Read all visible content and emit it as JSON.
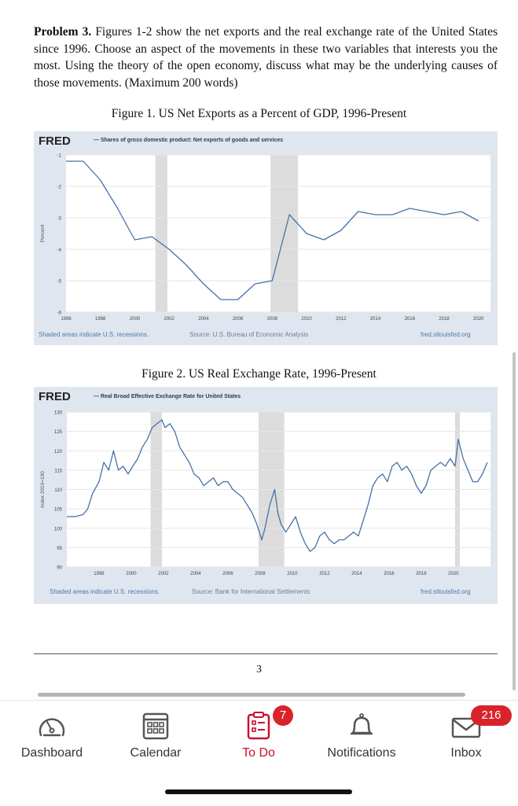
{
  "problem": {
    "heading": "Problem 3.",
    "body": "Figures 1-2 show the net exports and the real exchange rate of the United States since 1996. Choose an aspect of the movements in these two variables that interests you the most. Using the theory of the open economy, discuss what may be the underlying causes of those movements. (Maximum 200 words)"
  },
  "figure1": {
    "caption": "Figure 1. US Net Exports as a Percent of GDP, 1996-Present",
    "logo": "FRED",
    "series_label": "— Shares of gross domestic product: Net exports of goods and services",
    "footer_left": "Shaded areas indicate U.S. recessions.",
    "footer_mid": "Source: U.S. Bureau of Economic Analysis",
    "footer_right": "fred.stlouisfed.org"
  },
  "figure2": {
    "caption": "Figure 2. US Real Exchange Rate,  1996-Present",
    "logo": "FRED",
    "series_label": "— Real Broad Effective Exchange Rate for United States",
    "footer_left": "Shaded areas indicate U.S. recessions.",
    "footer_mid": "Source: Bank for International Settlements",
    "footer_right": "fred.stlouisfed.org"
  },
  "page_number": "3",
  "colors": {
    "line": "#4572a7",
    "recession": "#dcdcdc",
    "chart_bg": "#dfe6ef",
    "active_tab": "#c8102e",
    "badge": "#d9232a"
  },
  "tabbar": [
    {
      "label": "Dashboard",
      "icon": "dashboard-gauge-icon",
      "active": false
    },
    {
      "label": "Calendar",
      "icon": "calendar-icon",
      "active": false
    },
    {
      "label": "To Do",
      "icon": "todo-clipboard-icon",
      "active": true,
      "badge": "7"
    },
    {
      "label": "Notifications",
      "icon": "bell-icon",
      "active": false
    },
    {
      "label": "Inbox",
      "icon": "envelope-icon",
      "active": false,
      "badge": "216"
    }
  ],
  "chart_data": [
    {
      "type": "line",
      "title": "Shares of gross domestic product: Net exports of goods and services",
      "ylabel": "Percent",
      "xlim": [
        1996,
        2020.7
      ],
      "ylim": [
        -6,
        -1
      ],
      "xticks": [
        1996,
        1998,
        2000,
        2002,
        2004,
        2006,
        2008,
        2010,
        2012,
        2014,
        2016,
        2018,
        2020
      ],
      "yticks": [
        -1,
        -2,
        -3,
        -4,
        -5,
        -6
      ],
      "recessions": [
        [
          2001.2,
          2001.9
        ],
        [
          2007.9,
          2009.5
        ]
      ],
      "grid": true,
      "series": [
        {
          "x": [
            1996,
            1997,
            1998,
            1999,
            2000,
            2001,
            2002,
            2003,
            2004,
            2005,
            2006,
            2007,
            2008,
            2009,
            2010,
            2011,
            2012,
            2013,
            2014,
            2015,
            2016,
            2017,
            2018,
            2019,
            2020
          ],
          "values": [
            -1.2,
            -1.2,
            -1.8,
            -2.7,
            -3.7,
            -3.6,
            -4.0,
            -4.5,
            -5.1,
            -5.6,
            -5.6,
            -5.1,
            -5.0,
            -2.9,
            -3.5,
            -3.7,
            -3.4,
            -2.8,
            -2.9,
            -2.9,
            -2.7,
            -2.8,
            -2.9,
            -2.8,
            -3.1
          ]
        }
      ]
    },
    {
      "type": "line",
      "title": "Real Broad Effective Exchange Rate for United States",
      "ylabel": "Index 2010=100",
      "xlim": [
        1996,
        2022.3
      ],
      "ylim": [
        90,
        130
      ],
      "xticks": [
        1998,
        2000,
        2002,
        2004,
        2006,
        2008,
        2010,
        2012,
        2014,
        2016,
        2018,
        2020
      ],
      "yticks": [
        130,
        125,
        120,
        115,
        110,
        105,
        100,
        95,
        90
      ],
      "recessions": [
        [
          2001.2,
          2001.9
        ],
        [
          2007.9,
          2009.5
        ],
        [
          2020.1,
          2020.4
        ]
      ],
      "grid": true,
      "series": [
        {
          "x": [
            1996.0,
            1996.5,
            1997.0,
            1997.3,
            1997.6,
            1998.0,
            1998.3,
            1998.6,
            1998.9,
            1999.2,
            1999.5,
            1999.8,
            2000.1,
            2000.4,
            2000.7,
            2001.0,
            2001.3,
            2001.6,
            2001.9,
            2002.1,
            2002.4,
            2002.7,
            2003.0,
            2003.3,
            2003.6,
            2003.9,
            2004.2,
            2004.5,
            2004.8,
            2005.1,
            2005.4,
            2005.7,
            2006.0,
            2006.3,
            2006.6,
            2006.9,
            2007.2,
            2007.5,
            2007.8,
            2008.1,
            2008.3,
            2008.6,
            2008.9,
            2009.1,
            2009.3,
            2009.6,
            2009.9,
            2010.2,
            2010.5,
            2010.8,
            2011.1,
            2011.4,
            2011.7,
            2012.0,
            2012.3,
            2012.6,
            2012.9,
            2013.2,
            2013.5,
            2013.8,
            2014.1,
            2014.4,
            2014.7,
            2015.0,
            2015.3,
            2015.6,
            2015.9,
            2016.2,
            2016.5,
            2016.8,
            2017.1,
            2017.4,
            2017.7,
            2018.0,
            2018.3,
            2018.6,
            2018.9,
            2019.2,
            2019.5,
            2019.8,
            2020.1,
            2020.3,
            2020.6,
            2020.9,
            2021.2,
            2021.5,
            2021.8,
            2022.1
          ],
          "values": [
            103,
            103,
            103.5,
            105,
            109,
            112,
            117,
            115,
            120,
            115,
            116,
            114,
            116,
            118,
            121,
            123,
            126,
            127,
            128,
            126,
            127,
            125,
            121,
            119,
            117,
            114,
            113,
            111,
            112,
            113,
            111,
            112,
            112,
            110,
            109,
            108,
            106,
            104,
            101,
            97,
            100,
            106,
            110,
            104,
            101,
            99,
            101,
            103,
            99,
            96,
            94,
            95,
            98,
            99,
            97,
            96,
            97,
            97,
            98,
            99,
            98,
            102,
            106,
            111,
            113,
            114,
            112,
            116,
            117,
            115,
            116,
            114,
            111,
            109,
            111,
            115,
            116,
            117,
            116,
            118,
            116,
            123,
            118,
            115,
            112,
            112,
            114,
            117
          ]
        }
      ]
    }
  ]
}
